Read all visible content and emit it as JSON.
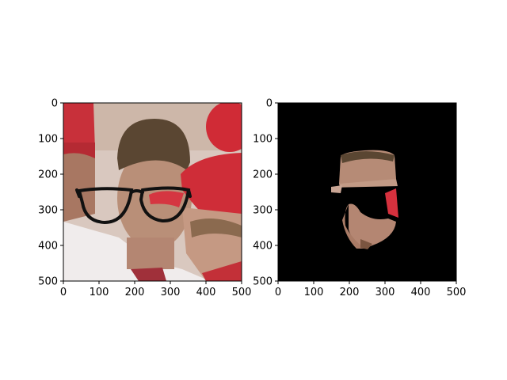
{
  "figure": {
    "panels": [
      {
        "name": "left",
        "description_hidden": true,
        "x_ticks": [
          "0",
          "100",
          "200",
          "300",
          "400",
          "500"
        ],
        "y_ticks": [
          "0",
          "100",
          "200",
          "300",
          "400",
          "500"
        ],
        "x_values": [
          0,
          100,
          200,
          300,
          400,
          500
        ],
        "y_values": [
          0,
          100,
          200,
          300,
          400,
          500
        ]
      },
      {
        "name": "right",
        "x_ticks": [
          "0",
          "100",
          "200",
          "300",
          "400",
          "500"
        ],
        "y_ticks": [
          "0",
          "100",
          "200",
          "300",
          "400",
          "500"
        ],
        "x_values": [
          0,
          100,
          200,
          300,
          400,
          500
        ],
        "y_values": [
          0,
          100,
          200,
          300,
          400,
          500
        ]
      }
    ]
  },
  "colors": {
    "jersey_red": "#c8303a",
    "skin": "#b98f78",
    "hair": "#5a4632",
    "white_shirt": "#f0ecec",
    "mask_bg": "#000000"
  }
}
